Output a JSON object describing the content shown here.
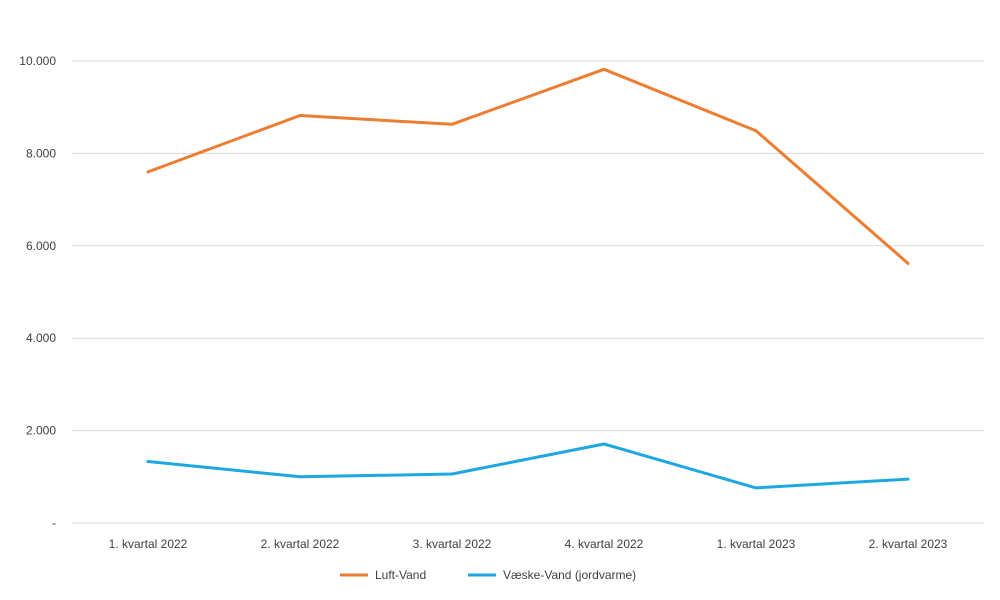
{
  "chart_data": {
    "type": "line",
    "title": "",
    "xlabel": "",
    "ylabel": "",
    "categories": [
      "1. kvartal 2022",
      "2. kvartal 2022",
      "3. kvartal 2022",
      "4. kvartal 2022",
      "1. kvartal 2023",
      "2. kvartal 2023"
    ],
    "series": [
      {
        "name": "Luft-Vand",
        "color": "#ED7D31",
        "values": [
          7600,
          8820,
          8630,
          9820,
          8490,
          5620
        ]
      },
      {
        "name": "Væske-Vand (jordvarme)",
        "color": "#1FA7E1",
        "values": [
          1330,
          1000,
          1060,
          1710,
          760,
          950
        ]
      }
    ],
    "ylim": [
      0,
      10000
    ],
    "yticks": [
      0,
      2000,
      4000,
      6000,
      8000,
      10000
    ],
    "ytick_labels": [
      "-",
      "2.000",
      "4.000",
      "6.000",
      "8.000",
      "10.000"
    ],
    "grid": true,
    "legend_position": "bottom"
  }
}
